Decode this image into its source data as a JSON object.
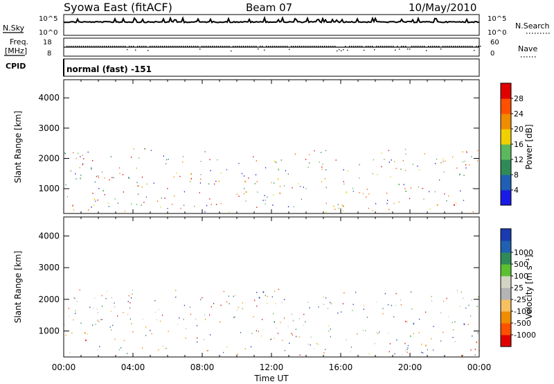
{
  "header": {
    "title": "Syowa East (fitACF)",
    "beam": "Beam 07",
    "date": "10/May/2010"
  },
  "noise_panel": {
    "left_label": "N.Sky",
    "right_label": "N.Search",
    "y_ticks_left": [
      "10^5",
      "10^0"
    ],
    "y_ticks_right": [
      "10^5",
      "10^0"
    ]
  },
  "freq_panel": {
    "left_label": "Freq.",
    "left_unit": "[MHz]",
    "right_label": "Nave",
    "y_ticks_left": [
      "18",
      "8"
    ],
    "y_ticks_right": [
      "60",
      "0"
    ]
  },
  "cpid_panel": {
    "label": "CPID",
    "text": "normal (fast) -151"
  },
  "colors": {
    "power": [
      "#1a1ae6",
      "#1f5fb4",
      "#2e8b57",
      "#5cb85c",
      "#f0d000",
      "#f08c00",
      "#ff5000",
      "#e00000"
    ],
    "velocity": [
      "#e00000",
      "#ff5000",
      "#f08c00",
      "#f5c060",
      "#b4b4b4",
      "#d4d4c4",
      "#5cc030",
      "#2e8b57",
      "#2060b0",
      "#1a3ab0"
    ]
  },
  "chart_data": [
    {
      "type": "heatmap",
      "name": "Power",
      "ylabel": "Slant Range [km]",
      "ylim": [
        180,
        4600
      ],
      "yticks": [
        "1000",
        "2000",
        "3000",
        "4000"
      ],
      "ytick_values": [
        1000,
        2000,
        3000,
        4000
      ],
      "colorbar_label": "Power [dB]",
      "colorbar_ticks": [
        "4",
        "8",
        "12",
        "16",
        "20",
        "24",
        "28"
      ],
      "colorbar_range": [
        0,
        30
      ],
      "regions": [
        {
          "t0": 0.1,
          "t1": 2.3,
          "r0": 350,
          "r1": 1900,
          "level": 0.5
        },
        {
          "t0": 0.2,
          "t1": 1.9,
          "r0": 450,
          "r1": 800,
          "level": 0.8
        },
        {
          "t0": 3.2,
          "t1": 5.0,
          "r0": 950,
          "r1": 1400,
          "level": 0.35
        },
        {
          "t0": 5.5,
          "t1": 7.5,
          "r0": 1350,
          "r1": 1850,
          "level": 0.8
        },
        {
          "t0": 7.0,
          "t1": 9.3,
          "r0": 850,
          "r1": 1500,
          "level": 0.7
        },
        {
          "t0": 9.0,
          "t1": 11.2,
          "r0": 900,
          "r1": 1700,
          "level": 0.6
        },
        {
          "t0": 10.8,
          "t1": 12.5,
          "r0": 1400,
          "r1": 2300,
          "level": 0.55
        },
        {
          "t0": 12.0,
          "t1": 14.8,
          "r0": 850,
          "r1": 1500,
          "level": 0.55
        },
        {
          "t0": 14.0,
          "t1": 16.5,
          "r0": 600,
          "r1": 1100,
          "level": 0.6
        },
        {
          "t0": 15.5,
          "t1": 19.0,
          "r0": 400,
          "r1": 800,
          "level": 0.65
        },
        {
          "t0": 18.5,
          "t1": 21.5,
          "r0": 700,
          "r1": 1400,
          "level": 0.4
        },
        {
          "t0": 21.0,
          "t1": 24.0,
          "r0": 450,
          "r1": 900,
          "level": 0.75
        },
        {
          "t0": 22.5,
          "t1": 24.0,
          "r0": 900,
          "r1": 1600,
          "level": 0.5
        }
      ]
    },
    {
      "type": "heatmap",
      "name": "Velocity",
      "ylabel": "Slant Range [km]",
      "ylim": [
        180,
        4600
      ],
      "yticks": [
        "1000",
        "2000",
        "3000",
        "4000"
      ],
      "ytick_values": [
        1000,
        2000,
        3000,
        4000
      ],
      "xlabel": "Time UT",
      "xticks": [
        "00:00",
        "04:00",
        "08:00",
        "12:00",
        "16:00",
        "20:00",
        "00:00"
      ],
      "xtick_values": [
        0,
        4,
        8,
        12,
        16,
        20,
        24
      ],
      "xlim": [
        0,
        24
      ],
      "colorbar_label": "Velocity [m s⁻¹]",
      "colorbar_ticks": [
        "-1000",
        "-500",
        "-100",
        "-25",
        "25",
        "100",
        "500",
        "1000"
      ],
      "regions": [
        {
          "t0": 0.1,
          "t1": 2.3,
          "r0": 350,
          "r1": 1900,
          "level": 0.25
        },
        {
          "t0": 0.3,
          "t1": 2.0,
          "r0": 400,
          "r1": 750,
          "level": 0.05
        },
        {
          "t0": 3.5,
          "t1": 4.8,
          "r0": 1000,
          "r1": 1500,
          "level": 0.2
        },
        {
          "t0": 5.5,
          "t1": 11.0,
          "r0": 1000,
          "r1": 1800,
          "level": 0.45
        },
        {
          "t0": 11.0,
          "t1": 12.8,
          "r0": 1500,
          "r1": 2300,
          "level": 0.9
        },
        {
          "t0": 12.0,
          "t1": 16.0,
          "r0": 700,
          "r1": 1600,
          "level": 0.65
        },
        {
          "t0": 14.5,
          "t1": 18.5,
          "r0": 350,
          "r1": 800,
          "level": 0.7
        },
        {
          "t0": 18.0,
          "t1": 21.0,
          "r0": 600,
          "r1": 1300,
          "level": 0.8
        },
        {
          "t0": 20.5,
          "t1": 24.0,
          "r0": 450,
          "r1": 900,
          "level": 0.15
        },
        {
          "t0": 22.0,
          "t1": 24.0,
          "r0": 900,
          "r1": 1500,
          "level": 0.85
        }
      ]
    }
  ]
}
